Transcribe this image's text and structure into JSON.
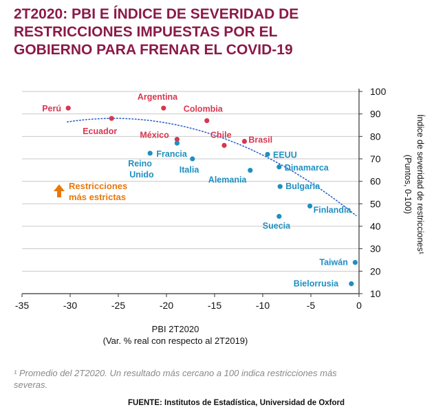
{
  "title_lines": [
    "2T2020: PBI E ÍNDICE DE SEVERIDAD DE",
    "RESTRICCIONES IMPUESTAS POR EL",
    "GOBIERNO PARA FRENAR EL COVID-19"
  ],
  "colors": {
    "title": "#8b1a47",
    "red_points": "#d9364f",
    "blue_points": "#1f8fc0",
    "trend": "#2a62c9",
    "annotation": "#e8780c"
  },
  "chart_data": {
    "type": "scatter",
    "xlim": [
      -35,
      0
    ],
    "ylim": [
      10,
      100
    ],
    "x_ticks": [
      "-35",
      "-30",
      "-25",
      "-20",
      "-15",
      "-10",
      "-5",
      "0"
    ],
    "y_ticks": [
      "10",
      "20",
      "30",
      "40",
      "50",
      "60",
      "70",
      "80",
      "90",
      "100"
    ],
    "grid": "horizontal",
    "xlabel_line1": "PBI 2T2020",
    "xlabel_line2": "(Var. % real con respecto al 2T2019)",
    "ylabel_line1": "Índice de severidad de restricciones¹",
    "ylabel_line2": "(Puntos, 0-100)",
    "points": [
      {
        "label": "Perú",
        "x": -30.2,
        "y": 92.6,
        "color": "red"
      },
      {
        "label": "Ecuador",
        "x": -25.7,
        "y": 88.0,
        "color": "red"
      },
      {
        "label": "Argentina",
        "x": -20.3,
        "y": 92.6,
        "color": "red"
      },
      {
        "label": "Colombia",
        "x": -15.8,
        "y": 87.0,
        "color": "red"
      },
      {
        "label": "México",
        "x": -18.9,
        "y": 78.7,
        "color": "red"
      },
      {
        "label": "Chile",
        "x": -14.0,
        "y": 76.0,
        "color": "red"
      },
      {
        "label": "Brasil",
        "x": -11.9,
        "y": 77.8,
        "color": "red"
      },
      {
        "label": "Francia",
        "x": -18.9,
        "y": 77.0,
        "color": "blue"
      },
      {
        "label": "Reino Unido",
        "x": -21.7,
        "y": 72.5,
        "color": "blue"
      },
      {
        "label": "Italia",
        "x": -17.3,
        "y": 70.0,
        "color": "blue"
      },
      {
        "label": "EEUU",
        "x": -9.5,
        "y": 72.0,
        "color": "blue"
      },
      {
        "label": "Alemania",
        "x": -11.3,
        "y": 64.9,
        "color": "blue"
      },
      {
        "label": "Dinamarca",
        "x": -8.3,
        "y": 66.4,
        "color": "blue"
      },
      {
        "label": "Bulgaria",
        "x": -8.2,
        "y": 57.7,
        "color": "blue"
      },
      {
        "label": "Finlandia",
        "x": -5.1,
        "y": 49.0,
        "color": "blue"
      },
      {
        "label": "Suecia",
        "x": -8.3,
        "y": 44.4,
        "color": "blue"
      },
      {
        "label": "Taiwán",
        "x": -0.4,
        "y": 23.9,
        "color": "blue"
      },
      {
        "label": "Bielorrusia",
        "x": -0.8,
        "y": 14.4,
        "color": "blue"
      }
    ],
    "annotation": {
      "line1": "Restricciones",
      "line2": "más estrictas"
    }
  },
  "footnote": "¹ Promedio del 2T2020. Un resultado más cercano a 100 indica restricciones más severas.",
  "source": "FUENTE: Institutos de Estadística, Universidad de Oxford"
}
